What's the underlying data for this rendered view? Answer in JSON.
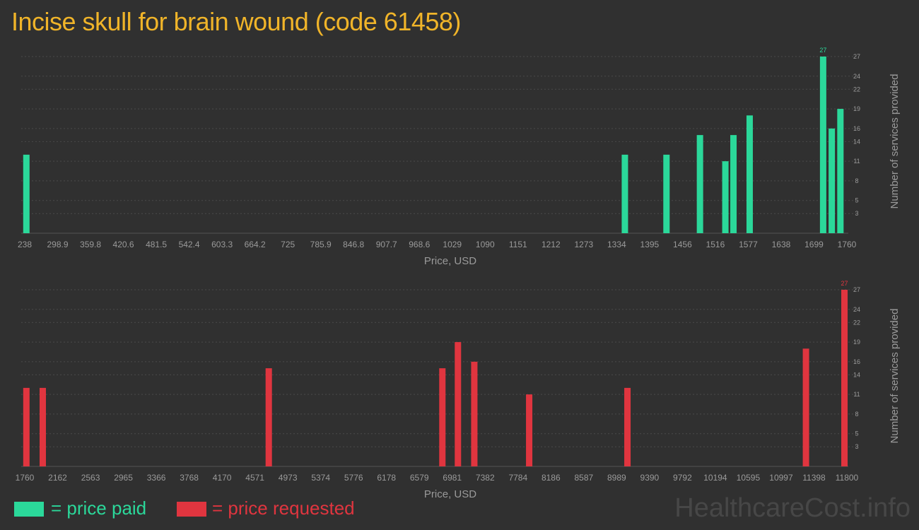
{
  "title": "Incise skull for brain wound (code 61458)",
  "colors": {
    "paid": "#2bd89a",
    "requested": "#e0353f",
    "title": "#f0b429",
    "text": "#9a9a9a",
    "background": "#303030"
  },
  "legend": {
    "paid": "= price paid",
    "requested": "= price requested"
  },
  "watermark": "HealthcareCost.info",
  "chart_data": [
    {
      "type": "bar",
      "name": "paid",
      "xlabel": "Price, USD",
      "ylabel": "Number of services provided",
      "xlim": [
        238,
        1760
      ],
      "ylim": [
        0,
        27
      ],
      "x_ticks": [
        "238",
        "298.9",
        "359.8",
        "420.6",
        "481.5",
        "542.4",
        "603.3",
        "664.2",
        "725",
        "785.9",
        "846.8",
        "907.7",
        "968.6",
        "1029",
        "1090",
        "1151",
        "1212",
        "1273",
        "1334",
        "1395",
        "1456",
        "1516",
        "1577",
        "1638",
        "1699",
        "1760"
      ],
      "y_ticks": [
        3,
        5,
        8,
        11,
        14,
        16,
        19,
        22,
        24,
        27
      ],
      "bars": [
        {
          "x": 241,
          "y": 12
        },
        {
          "x": 1349,
          "y": 12
        },
        {
          "x": 1426,
          "y": 12
        },
        {
          "x": 1488,
          "y": 15
        },
        {
          "x": 1535,
          "y": 11
        },
        {
          "x": 1550,
          "y": 15
        },
        {
          "x": 1580,
          "y": 18
        },
        {
          "x": 1716,
          "y": 27
        },
        {
          "x": 1732,
          "y": 16
        },
        {
          "x": 1748,
          "y": 19
        }
      ],
      "max_label": "27"
    },
    {
      "type": "bar",
      "name": "requested",
      "xlabel": "Price, USD",
      "ylabel": "Number of services provided",
      "xlim": [
        1760,
        11800
      ],
      "ylim": [
        0,
        27
      ],
      "x_ticks": [
        "1760",
        "2162",
        "2563",
        "2965",
        "3366",
        "3768",
        "4170",
        "4571",
        "4973",
        "5374",
        "5776",
        "6178",
        "6579",
        "6981",
        "7382",
        "7784",
        "8186",
        "8587",
        "8989",
        "9390",
        "9792",
        "10194",
        "10595",
        "10997",
        "11398",
        "11800"
      ],
      "y_ticks": [
        3,
        5,
        8,
        11,
        14,
        16,
        19,
        22,
        24,
        27
      ],
      "bars": [
        {
          "x": 1780,
          "y": 12
        },
        {
          "x": 1980,
          "y": 12
        },
        {
          "x": 4740,
          "y": 15
        },
        {
          "x": 6860,
          "y": 15
        },
        {
          "x": 7050,
          "y": 19
        },
        {
          "x": 7250,
          "y": 16
        },
        {
          "x": 7920,
          "y": 11
        },
        {
          "x": 9120,
          "y": 12
        },
        {
          "x": 11300,
          "y": 18
        },
        {
          "x": 11770,
          "y": 27
        }
      ],
      "max_label": "27"
    }
  ]
}
